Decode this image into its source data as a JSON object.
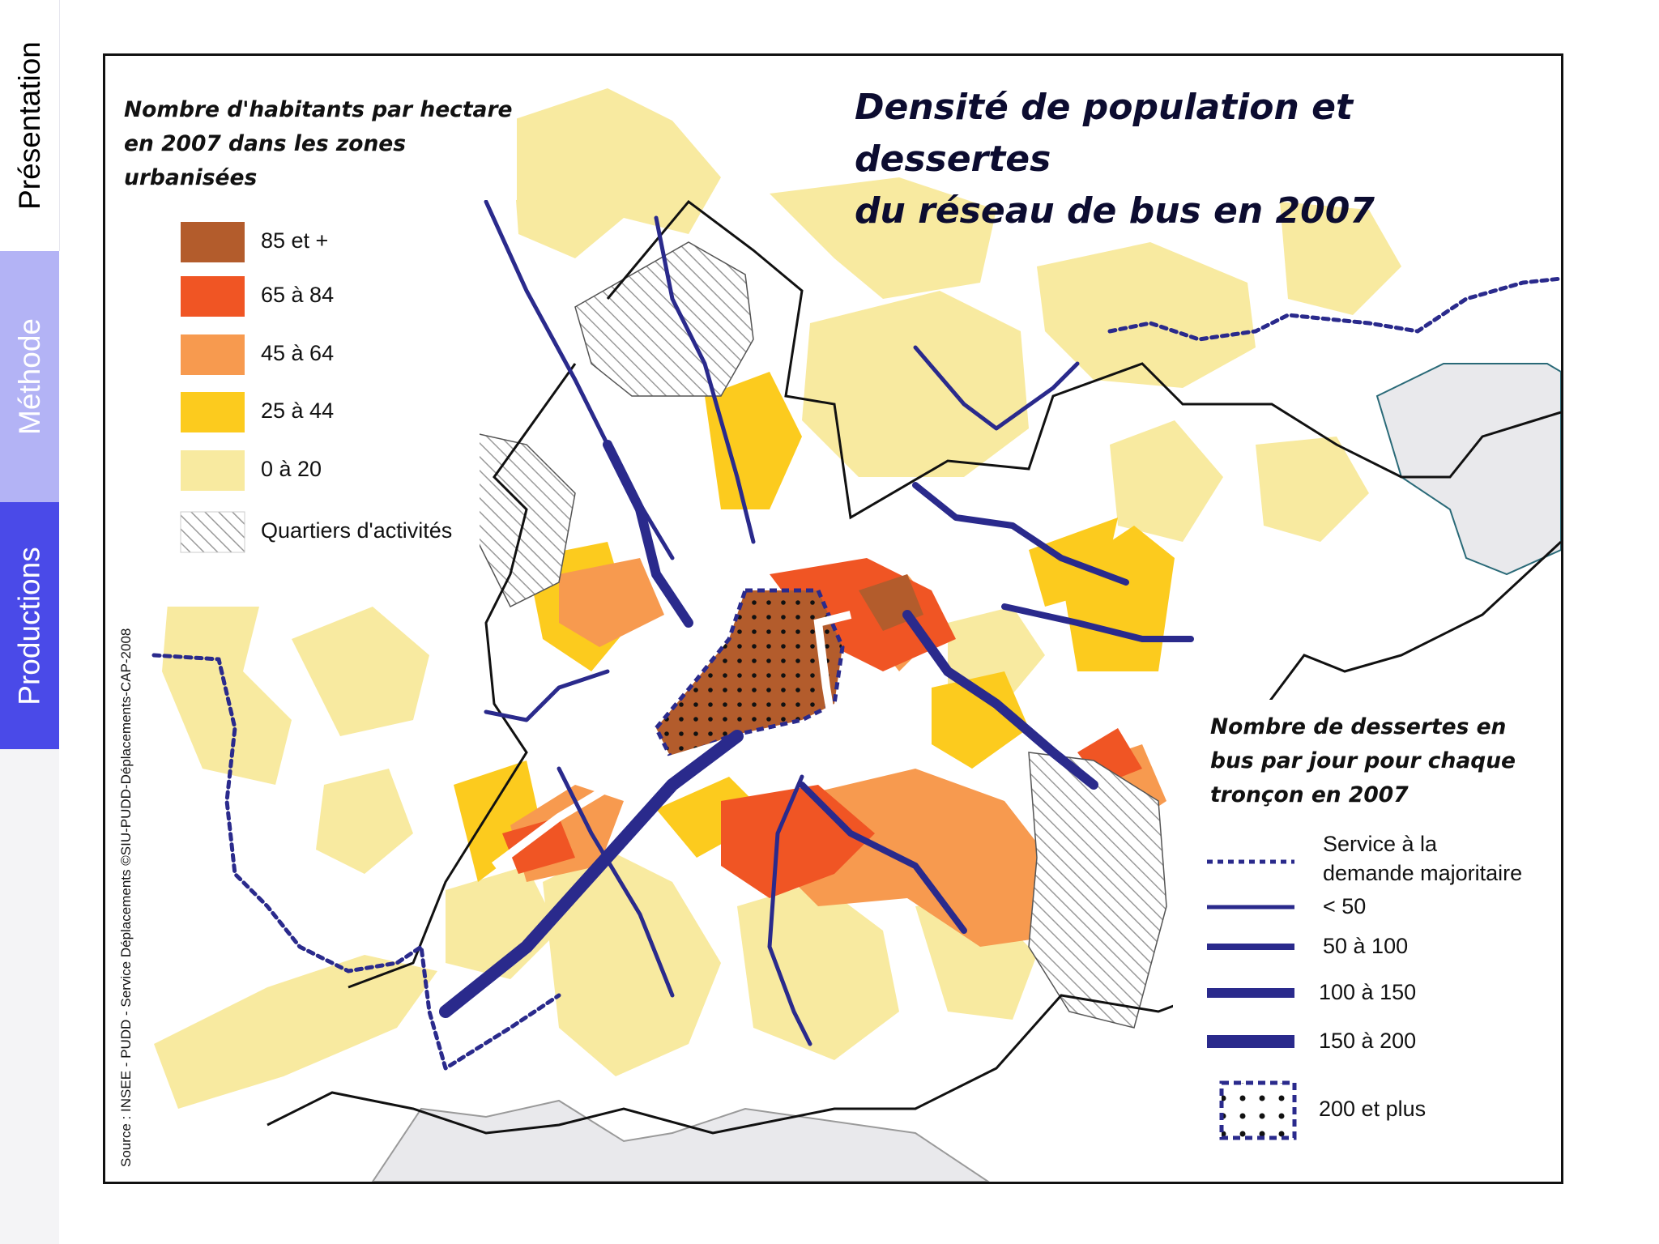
{
  "nav": {
    "tabs": [
      {
        "label": "Présentation",
        "active": false
      },
      {
        "label": "Méthode",
        "active": false
      },
      {
        "label": "Productions",
        "active": true
      }
    ]
  },
  "map": {
    "title_line1": "Densité de population et dessertes",
    "title_line2": "du réseau de bus en 2007",
    "source": "Source : INSEE - PUDD - Service Déplacements ©SIU-PUDD-Déplacements-CAP-2008"
  },
  "population_legend": {
    "heading_line1": "Nombre d'habitants par hectare",
    "heading_line2": "en 2007 dans les zones",
    "heading_line3": "urbanisées",
    "classes": [
      {
        "label": "85 et +",
        "color": "#b35c2c"
      },
      {
        "label": "65 à 84",
        "color": "#f05524"
      },
      {
        "label": "45 à 64",
        "color": "#f79a4f"
      },
      {
        "label": "25 à 44",
        "color": "#fccb1e"
      },
      {
        "label": "0 à 20",
        "color": "#f8eaa0"
      },
      {
        "label": "Quartiers d'activités",
        "pattern": "hatched-gray"
      }
    ]
  },
  "bus_legend": {
    "heading_line1": "Nombre de dessertes en",
    "heading_line2": "bus par jour pour chaque",
    "heading_line3": "tronçon en 2007",
    "line_color": "#2a2a8c",
    "classes": [
      {
        "label_line1": "Service à la",
        "label_line2": "demande majoritaire",
        "style": "dotted"
      },
      {
        "label": "< 50",
        "style": "thin"
      },
      {
        "label": "50 à 100",
        "style": "medium"
      },
      {
        "label": "100 à 150",
        "style": "thick"
      },
      {
        "label": "150 à 200",
        "style": "very-thick"
      },
      {
        "label": "200 et plus",
        "style": "dotted-area"
      }
    ]
  }
}
